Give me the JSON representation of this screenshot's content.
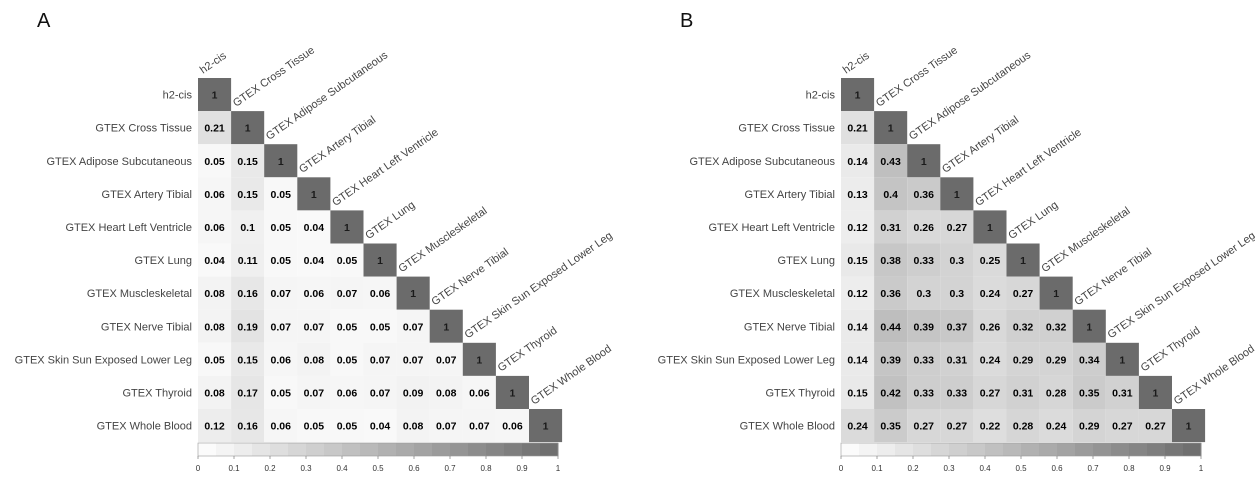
{
  "chart_data": [
    {
      "type": "heatmap",
      "panel": "A",
      "labels": [
        "h2-cis",
        "GTEX Cross Tissue",
        "GTEX Adipose Subcutaneous",
        "GTEX Artery Tibial",
        "GTEX Heart Left Ventricle",
        "GTEX Lung",
        "GTEX Muscleskeletal",
        "GTEX Nerve Tibial",
        "GTEX  Skin Sun Exposed Lower Leg",
        "GTEX Thyroid",
        "GTEX Whole Blood"
      ],
      "matrix": [
        [
          1
        ],
        [
          0.21,
          1
        ],
        [
          0.05,
          0.15,
          1
        ],
        [
          0.06,
          0.15,
          0.05,
          1
        ],
        [
          0.06,
          0.1,
          0.05,
          0.04,
          1
        ],
        [
          0.04,
          0.11,
          0.05,
          0.04,
          0.05,
          1
        ],
        [
          0.08,
          0.16,
          0.07,
          0.06,
          0.07,
          0.06,
          1
        ],
        [
          0.08,
          0.19,
          0.07,
          0.07,
          0.05,
          0.05,
          0.07,
          1
        ],
        [
          0.05,
          0.15,
          0.06,
          0.08,
          0.05,
          0.07,
          0.07,
          0.07,
          1
        ],
        [
          0.08,
          0.17,
          0.05,
          0.07,
          0.06,
          0.07,
          0.09,
          0.08,
          0.06,
          1
        ],
        [
          0.12,
          0.16,
          0.06,
          0.05,
          0.05,
          0.04,
          0.08,
          0.07,
          0.07,
          0.06,
          1
        ]
      ],
      "colorbar_ticks": [
        "0",
        "0.1",
        "0.2",
        "0.3",
        "0.4",
        "0.5",
        "0.6",
        "0.7",
        "0.8",
        "0.9",
        "1"
      ],
      "color_range": [
        0,
        1
      ]
    },
    {
      "type": "heatmap",
      "panel": "B",
      "labels": [
        "h2-cis",
        "GTEX Cross Tissue",
        "GTEX Adipose Subcutaneous",
        "GTEX Artery Tibial",
        "GTEX Heart Left Ventricle",
        "GTEX Lung",
        "GTEX Muscleskeletal",
        "GTEX Nerve Tibial",
        "GTEX  Skin Sun Exposed Lower Leg",
        "GTEX Thyroid",
        "GTEX Whole Blood"
      ],
      "matrix": [
        [
          1
        ],
        [
          0.21,
          1
        ],
        [
          0.14,
          0.43,
          1
        ],
        [
          0.13,
          0.4,
          0.36,
          1
        ],
        [
          0.12,
          0.31,
          0.26,
          0.27,
          1
        ],
        [
          0.15,
          0.38,
          0.33,
          0.3,
          0.25,
          1
        ],
        [
          0.12,
          0.36,
          0.3,
          0.3,
          0.24,
          0.27,
          1
        ],
        [
          0.14,
          0.44,
          0.39,
          0.37,
          0.26,
          0.32,
          0.32,
          1
        ],
        [
          0.14,
          0.39,
          0.33,
          0.31,
          0.24,
          0.29,
          0.29,
          0.34,
          1
        ],
        [
          0.15,
          0.42,
          0.33,
          0.33,
          0.27,
          0.31,
          0.28,
          0.35,
          0.31,
          1
        ],
        [
          0.24,
          0.35,
          0.27,
          0.27,
          0.22,
          0.28,
          0.24,
          0.29,
          0.27,
          0.27,
          1
        ]
      ],
      "colorbar_ticks": [
        "0",
        "0.1",
        "0.2",
        "0.3",
        "0.4",
        "0.5",
        "0.6",
        "0.7",
        "0.8",
        "0.9",
        "1"
      ],
      "color_range": [
        0,
        1
      ]
    }
  ],
  "colors": {
    "low": "#ffffff",
    "high": "#6b6b6b",
    "text_dark": "#000000",
    "text_light": "#ffffff"
  }
}
